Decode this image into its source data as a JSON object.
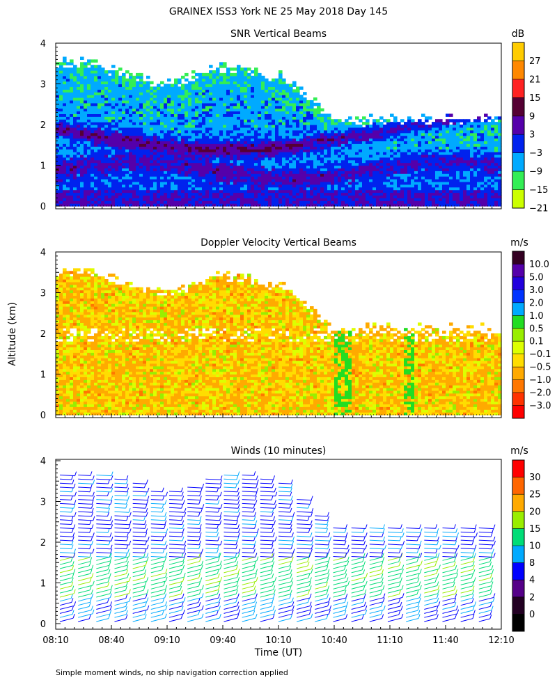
{
  "figure": {
    "title": "GRAINEX ISS3 York NE  25 May 2018 Day 145",
    "y_axis_label": "Altitude (km)",
    "x_axis_label": "Time (UT)",
    "footnote": "Simple moment winds, no ship navigation correction applied",
    "x_ticks": [
      "08:10",
      "08:40",
      "09:10",
      "09:40",
      "10:10",
      "10:40",
      "11:10",
      "11:40",
      "12:10"
    ]
  },
  "panels": {
    "snr": {
      "title": "SNR Vertical Beams",
      "unit": "dB",
      "colorbar_labels": [
        "27",
        "21",
        "15",
        "9",
        "3",
        "−3",
        "−9",
        "−15",
        "−21"
      ],
      "colors": [
        "#ffcc00",
        "#ff8800",
        "#ff2222",
        "#550033",
        "#5500aa",
        "#0022ee",
        "#00aaff",
        "#33ee55",
        "#ccff00"
      ]
    },
    "doppler": {
      "title": "Doppler Velocity Vertical Beams",
      "unit": "m/s",
      "colorbar_labels": [
        "10.0",
        "5.0",
        "3.0",
        "2.0",
        "1.0",
        "0.5",
        "0.1",
        "−0.1",
        "−0.5",
        "−1.0",
        "−2.0",
        "−3.0"
      ],
      "colors": [
        "#330022",
        "#5500aa",
        "#2200dd",
        "#0033ff",
        "#00aaff",
        "#22dd22",
        "#99ee00",
        "#ddff00",
        "#ffdd00",
        "#ffaa00",
        "#ff7700",
        "#ff3300",
        "#ff0000"
      ]
    },
    "winds": {
      "title": "Winds (10 minutes)",
      "unit": "m/s",
      "colorbar_labels": [
        "30",
        "25",
        "20",
        "15",
        "10",
        "8",
        "4",
        "2",
        "0"
      ],
      "colors": [
        "#ff0000",
        "#ff6600",
        "#ffaa00",
        "#99ee00",
        "#00dd77",
        "#00aaff",
        "#0000ff",
        "#550088",
        "#220022",
        "#000000"
      ]
    }
  },
  "chart_data": [
    {
      "type": "heatmap",
      "title": "SNR Vertical Beams",
      "unit": "dB",
      "x_range": [
        "08:10",
        "12:10"
      ],
      "ylim": [
        0,
        4
      ],
      "yticks": [
        0,
        1,
        2,
        3,
        4
      ],
      "color_levels": [
        -21,
        -15,
        -9,
        -3,
        3,
        9,
        15,
        21,
        27
      ]
    },
    {
      "type": "heatmap",
      "title": "Doppler Velocity Vertical Beams",
      "unit": "m/s",
      "x_range": [
        "08:10",
        "12:10"
      ],
      "ylim": [
        0,
        4
      ],
      "yticks": [
        0,
        1,
        2,
        3,
        4
      ],
      "color_levels": [
        -3.0,
        -2.0,
        -1.0,
        -0.5,
        -0.1,
        0.1,
        0.5,
        1.0,
        2.0,
        3.0,
        5.0,
        10.0
      ]
    },
    {
      "type": "scatter",
      "title": "Winds (10 minutes)",
      "unit": "m/s",
      "x_range": [
        "08:10",
        "12:10"
      ],
      "ylim": [
        0,
        4
      ],
      "yticks": [
        0,
        1,
        2,
        3,
        4
      ],
      "color_levels": [
        0,
        2,
        4,
        8,
        10,
        15,
        20,
        25,
        30
      ]
    }
  ]
}
